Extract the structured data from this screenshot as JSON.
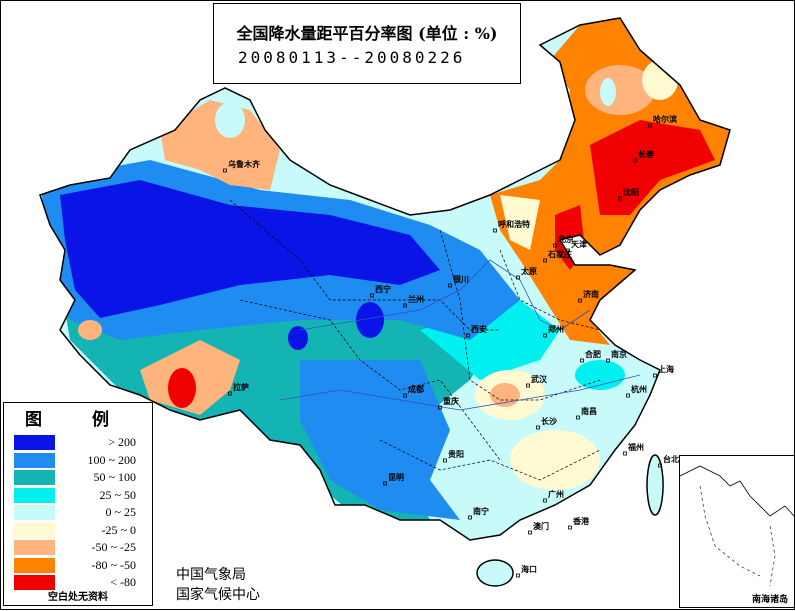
{
  "title": "全国降水量距平百分率图 (单位 : %)",
  "date_range": "20080113--20080226",
  "legend": {
    "title": "图 例",
    "items": [
      {
        "label": "> 200",
        "color": "#0a14e6"
      },
      {
        "label": "100 ~ 200",
        "color": "#1e8cf0"
      },
      {
        "label": "50 ~ 100",
        "color": "#14b4b4"
      },
      {
        "label": "25 ~ 50",
        "color": "#00f0f0"
      },
      {
        "label": "0 ~ 25",
        "color": "#c8fafa"
      },
      {
        "label": "-25 ~ 0",
        "color": "#fffad2"
      },
      {
        "label": "-50 ~ -25",
        "color": "#ffb47d"
      },
      {
        "label": "-80 ~ -50",
        "color": "#ff8200"
      },
      {
        "label": "< -80",
        "color": "#f00000"
      }
    ],
    "note": "空白处无资料"
  },
  "organization": [
    "中国气象局",
    "国家气候中心"
  ],
  "inset_label": "南海诸岛",
  "cities": [
    "乌鲁木齐",
    "哈尔滨",
    "长春",
    "沈阳",
    "呼和浩特",
    "北京",
    "天津",
    "石家庄",
    "太原",
    "银川",
    "西宁",
    "兰州",
    "济南",
    "郑州",
    "西安",
    "合肥",
    "南京",
    "上海",
    "杭州",
    "武汉",
    "成都",
    "拉萨",
    "重庆",
    "长沙",
    "南昌",
    "福州",
    "贵阳",
    "昆明",
    "南宁",
    "广州",
    "香港",
    "澳门",
    "台北",
    "海口"
  ]
}
